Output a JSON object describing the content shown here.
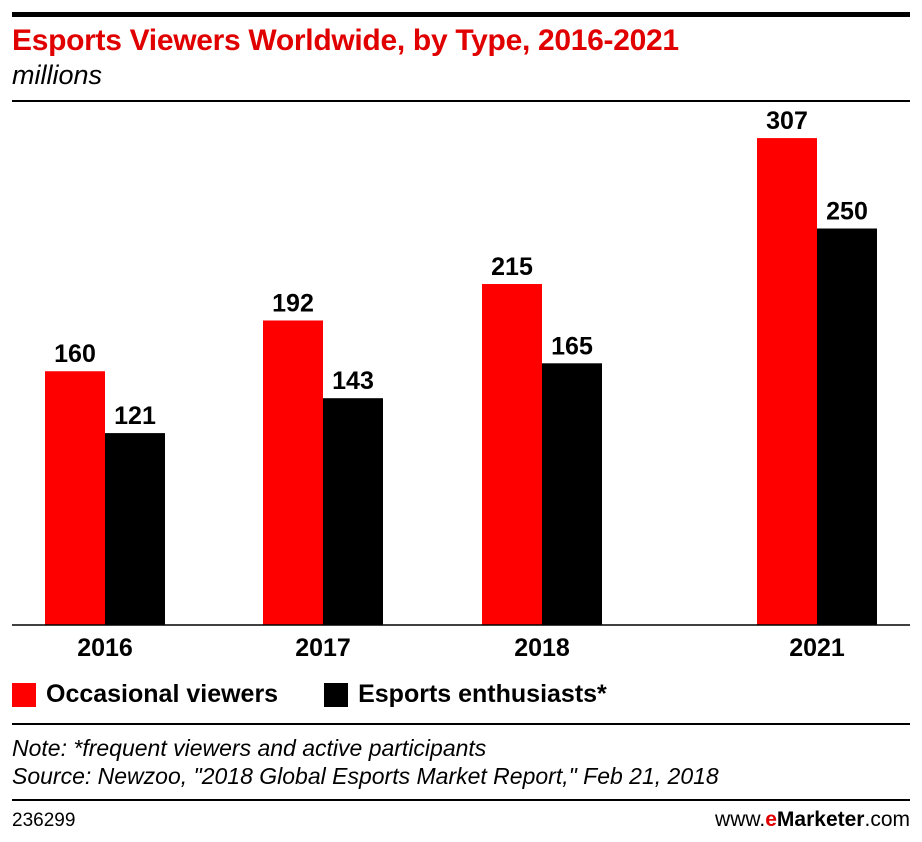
{
  "header": {
    "title": "Esports Viewers Worldwide, by Type, 2016-2021",
    "subtitle": "millions"
  },
  "chart_data": {
    "type": "bar",
    "title": "Esports Viewers Worldwide, by Type, 2016-2021",
    "subtitle": "millions",
    "xlabel": "",
    "ylabel": "",
    "ylim": [
      0,
      330
    ],
    "grid": false,
    "legend_position": "bottom-left",
    "categories": [
      "2016",
      "2017",
      "2018",
      "2021"
    ],
    "series": [
      {
        "name": "Occasional viewers",
        "color": "#ff0000",
        "values": [
          160,
          192,
          215,
          307
        ]
      },
      {
        "name": "Esports enthusiasts*",
        "color": "#000000",
        "values": [
          121,
          143,
          165,
          250
        ]
      }
    ]
  },
  "legend": {
    "items": [
      {
        "label": "Occasional viewers",
        "color": "#ff0000"
      },
      {
        "label": "Esports enthusiasts*",
        "color": "#000000"
      }
    ]
  },
  "footer": {
    "note": "Note: *frequent viewers and active participants",
    "source": "Source: Newzoo, \"2018 Global Esports Market Report,\" Feb 21, 2018",
    "chart_id": "236299",
    "brand": {
      "prefix": "www.",
      "e": "e",
      "name": "Marketer",
      "suffix": ".com"
    }
  },
  "colors": {
    "accent": "#e10000",
    "series_red": "#ff0000",
    "series_black": "#000000"
  }
}
